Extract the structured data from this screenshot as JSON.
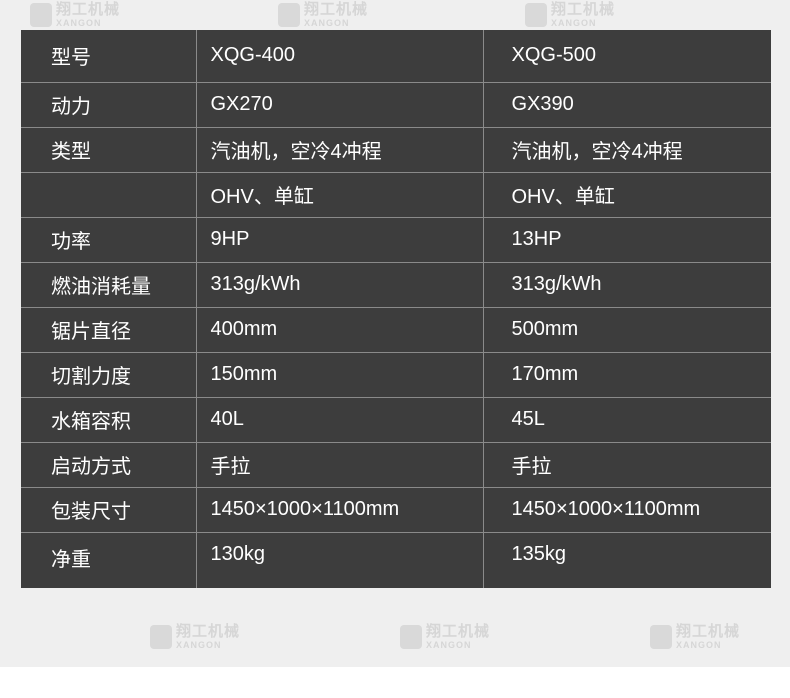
{
  "watermark": {
    "name": "翔工机械",
    "sub": "XANGON"
  },
  "spec_table": {
    "rows": [
      [
        "型号",
        "XQG-400",
        "XQG-500"
      ],
      [
        "动力",
        "GX270",
        "GX390"
      ],
      [
        "类型",
        "汽油机，空冷4冲程",
        "汽油机，空冷4冲程"
      ],
      [
        "",
        "OHV、单缸",
        "OHV、单缸"
      ],
      [
        "功率",
        "9HP",
        "13HP"
      ],
      [
        "燃油消耗量",
        "313g/kWh",
        "313g/kWh"
      ],
      [
        "锯片直径",
        "400mm",
        "500mm"
      ],
      [
        "切割力度",
        "150mm",
        "170mm"
      ],
      [
        "水箱容积",
        "40L",
        "45L"
      ],
      [
        "启动方式",
        "手拉",
        "手拉"
      ],
      [
        "包装尺寸",
        "1450×1000×1100mm",
        "1450×1000×1100mm"
      ],
      [
        "净重",
        "130kg",
        "135kg"
      ]
    ]
  }
}
